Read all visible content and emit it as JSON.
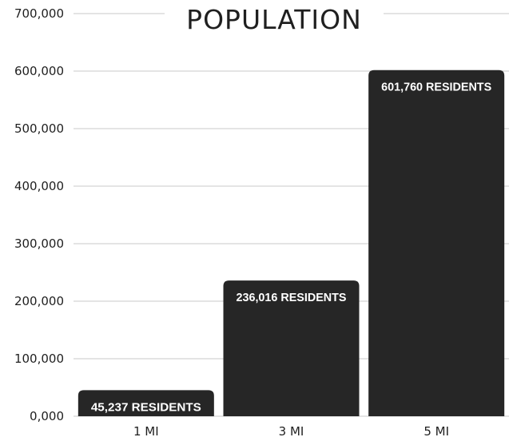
{
  "chart_data": {
    "type": "bar",
    "title": "POPULATION",
    "categories": [
      "1 MI",
      "3 MI",
      "5 MI"
    ],
    "values": [
      45237,
      236016,
      601760
    ],
    "data_labels": [
      "45,237 RESIDENTS",
      "236,016 RESIDENTS",
      "601,760 RESIDENTS"
    ],
    "ylim": [
      0,
      700000
    ],
    "yticks": [
      0,
      100000,
      200000,
      300000,
      400000,
      500000,
      600000,
      700000
    ],
    "ytick_labels": [
      "0,000",
      "100,000",
      "200,000",
      "300,000",
      "400,000",
      "500,000",
      "600,000",
      "700,000"
    ],
    "xlabel": "",
    "ylabel": "",
    "grid": true,
    "bar_color": "#262626",
    "label_color": "#ffffff",
    "grid_color": "#c8c8c8"
  }
}
